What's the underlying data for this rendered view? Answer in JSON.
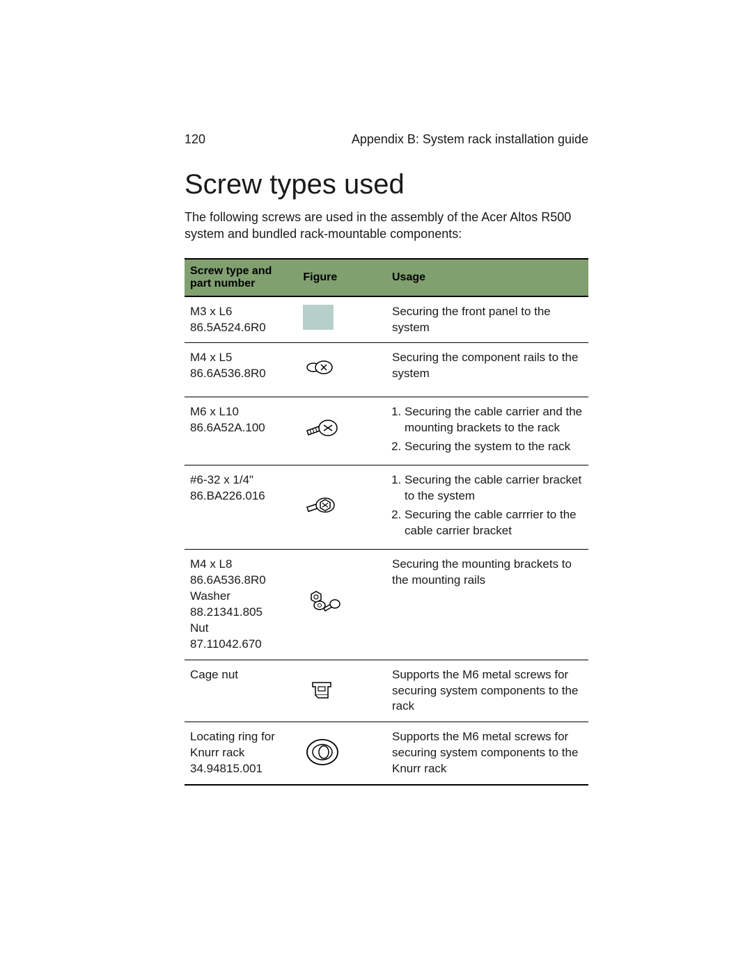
{
  "page_number": "120",
  "appendix_label": "Appendix B: System rack installation guide",
  "title": "Screw types used",
  "intro": "The following screws are used in the assembly of the Acer Altos R500 system and bundled rack-mountable components:",
  "colors": {
    "header_bg": "#80a070",
    "header_text": "#000000",
    "placeholder_bg": "#b7cfc9",
    "rule": "#000000",
    "page_bg": "#ffffff",
    "body_text": "#1a1a1a"
  },
  "fonts": {
    "title_size_pt": 30,
    "title_weight": 300,
    "body_size_pt": 13,
    "header_size_pt": 12,
    "header_weight": 700
  },
  "table": {
    "headers": {
      "type": "Screw type and part number",
      "figure": "Figure",
      "usage": "Usage"
    },
    "column_widths_pct": [
      28,
      22,
      50
    ],
    "rows": [
      {
        "type_lines": [
          "M3 x L6",
          "86.5A524.6R0"
        ],
        "figure_kind": "placeholder",
        "usage_text": "Securing the front panel to the system"
      },
      {
        "type_lines": [
          "M4 x L5",
          "86.6A536.8R0"
        ],
        "figure_kind": "small-screw",
        "usage_text": "Securing the component rails to the system"
      },
      {
        "type_lines": [
          "M6 x L10",
          "86.6A52A.100"
        ],
        "figure_kind": "pan-screw",
        "usage_list": [
          "Securing the cable carrier and the mounting brackets to the rack",
          "Securing the system to the rack"
        ]
      },
      {
        "type_lines": [
          "#6-32 x 1/4\"",
          "86.BA226.016"
        ],
        "figure_kind": "hex-flange-screw",
        "usage_list": [
          "Securing the cable carrier bracket to the system",
          "Securing the cable carrrier to the cable carrier bracket"
        ]
      },
      {
        "type_lines": [
          "M4 x L8",
          "86.6A536.8R0",
          "Washer",
          "88.21341.805",
          "Nut",
          "87.11042.670"
        ],
        "figure_kind": "nut-washer-screw",
        "usage_text": "Securing the mounting brackets to the mounting rails"
      },
      {
        "type_lines": [
          "Cage nut"
        ],
        "figure_kind": "cage-nut",
        "usage_text": "Supports the M6 metal screws for securing system components to the rack"
      },
      {
        "type_lines": [
          "Locating ring for Knurr rack",
          "34.94815.001"
        ],
        "figure_kind": "locating-ring",
        "usage_text": "Supports the M6 metal screws for securing system components to the Knurr rack"
      }
    ]
  }
}
